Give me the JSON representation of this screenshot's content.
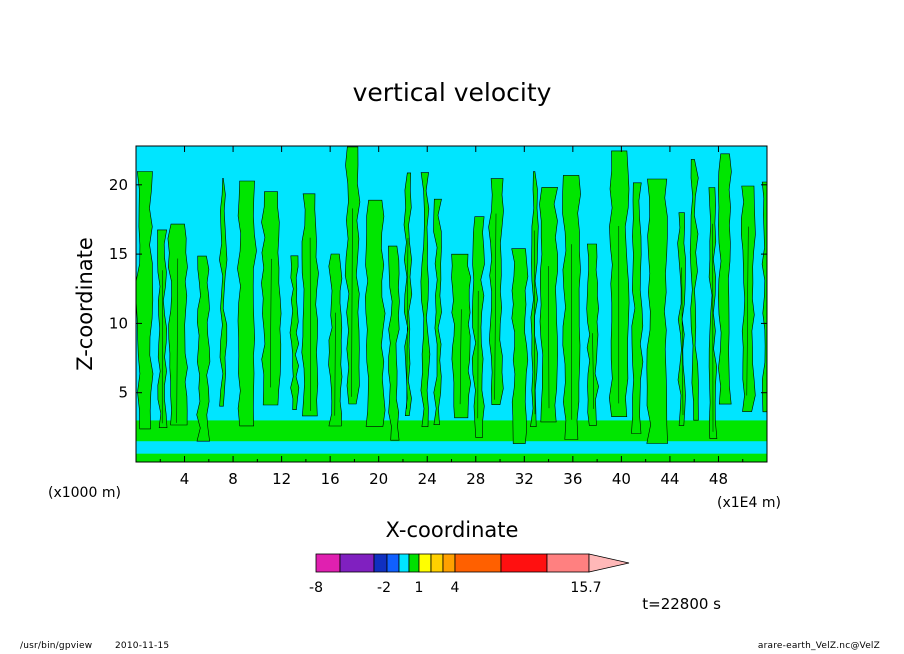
{
  "chart_data": {
    "type": "heatmap",
    "title": "vertical velocity",
    "xlabel": "X-coordinate",
    "ylabel": "Z-coordinate",
    "x_unit_left": "(x1000 m)",
    "x_unit_right": "(x1E4 m)",
    "xlim": [
      0,
      52
    ],
    "ylim": [
      0,
      22.8
    ],
    "x_ticks": [
      4,
      8,
      12,
      16,
      20,
      24,
      28,
      32,
      36,
      40,
      44,
      48
    ],
    "x_tick_labels": [
      "4",
      "8",
      "12",
      "16",
      "20",
      "24",
      "28",
      "32",
      "36",
      "40",
      "44",
      "48"
    ],
    "y_ticks": [
      5,
      10,
      15,
      20
    ],
    "y_tick_labels": [
      "5",
      "10",
      "15",
      "20"
    ],
    "field_colors": {
      "background_weak": "#00e5ff",
      "positive_weak": "#00e600",
      "contour_line": "#000000"
    },
    "colorbar": {
      "colors": [
        "#e020b0",
        "#8020c0",
        "#1030c0",
        "#1060ff",
        "#00e5ff",
        "#00e000",
        "#ffff00",
        "#ffd000",
        "#ffa000",
        "#ff6000",
        "#ff1010",
        "#ff8080",
        "#ffb8b8"
      ],
      "boundaries": [
        -8,
        -2,
        1,
        4,
        15.7
      ],
      "tick_labels": [
        "-8",
        "-2",
        "1",
        "4",
        "15.7"
      ]
    },
    "time_label": "t=22800 s"
  },
  "footer": {
    "program": "/usr/bin/gpview",
    "date": "2010-11-15",
    "source": "arare-earth_VelZ.nc@VelZ"
  }
}
